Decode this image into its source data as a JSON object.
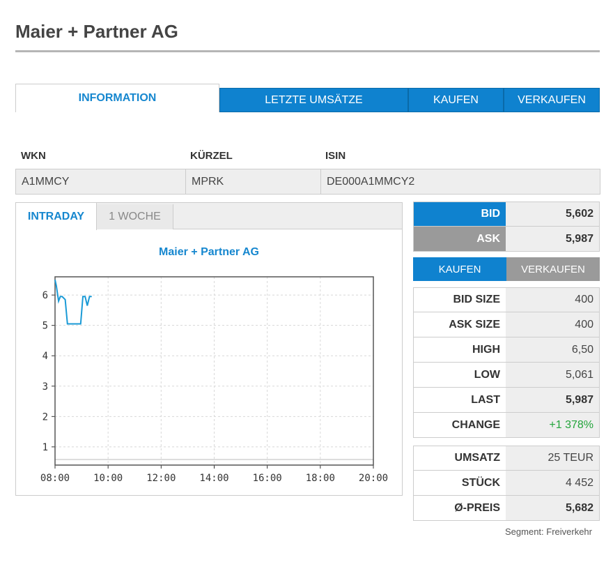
{
  "page_title": "Maier + Partner AG",
  "tabs": [
    "INFORMATION",
    "LETZTE UMSÄTZE",
    "KAUFEN",
    "VERKAUFEN"
  ],
  "identity": {
    "headers": [
      "WKN",
      "KÜRZEL",
      "ISIN"
    ],
    "values": [
      "A1MMCY",
      "MPRK",
      "DE000A1MMCY2"
    ]
  },
  "chart_tabs": [
    "INTRADAY",
    "1 WOCHE"
  ],
  "chart_data": {
    "type": "line",
    "title": "Maier + Partner AG",
    "xlabel": "",
    "ylabel": "",
    "xlim": [
      "08:00",
      "20:00"
    ],
    "x_ticks": [
      "08:00",
      "10:00",
      "12:00",
      "14:00",
      "16:00",
      "18:00",
      "20:00"
    ],
    "y_ticks": [
      1,
      2,
      3,
      4,
      5,
      6
    ],
    "ylim": [
      0.4,
      6.6
    ],
    "grid": true,
    "series": [
      {
        "color": "#1a9ad6",
        "x": [
          "08:00",
          "08:03",
          "08:08",
          "08:12",
          "08:16",
          "08:23",
          "08:28",
          "08:35",
          "08:40",
          "08:50",
          "08:58",
          "09:03",
          "09:08",
          "09:13",
          "09:18",
          "09:23"
        ],
        "y": [
          6.5,
          6.3,
          5.8,
          5.95,
          5.95,
          5.85,
          5.05,
          5.05,
          5.05,
          5.05,
          5.05,
          5.95,
          5.95,
          5.65,
          5.95,
          5.95
        ]
      }
    ]
  },
  "quote": {
    "bid_label": "BID",
    "bid": "5,602",
    "ask_label": "ASK",
    "ask": "5,987"
  },
  "trade_buttons": [
    "KAUFEN",
    "VERKAUFEN"
  ],
  "stats": [
    {
      "label": "BID SIZE",
      "value": "400"
    },
    {
      "label": "ASK SIZE",
      "value": "400"
    },
    {
      "label": "HIGH",
      "value": "6,50"
    },
    {
      "label": "LOW",
      "value": "5,061"
    },
    {
      "label": "LAST",
      "value": "5,987"
    },
    {
      "label": "CHANGE",
      "value": "+1 378%"
    }
  ],
  "volume": [
    {
      "label": "UMSATZ",
      "value": "25 TEUR"
    },
    {
      "label": "STÜCK",
      "value": "4 452"
    },
    {
      "label": "Ø-PREIS",
      "value": "5,682"
    }
  ],
  "segment": "Segment: Freiverkehr",
  "colors": {
    "accent": "#0f82cf",
    "positive": "#22a43a",
    "neutral": "#9a9a9a"
  }
}
